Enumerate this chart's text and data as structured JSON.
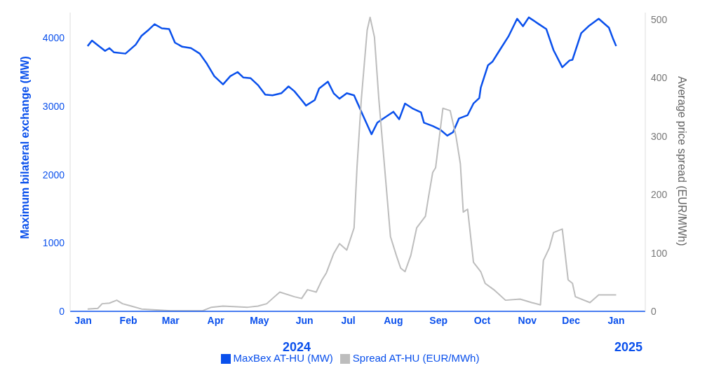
{
  "chart_data": {
    "type": "line",
    "ylabel": "Maximum bilateral exchange (MW)",
    "y2label": "Average price spread (EUR/MWh)",
    "xlim": [
      "2023-12-23",
      "2025-01-21"
    ],
    "xticks": [
      {
        "value": "2024-01-01",
        "label": "Jan"
      },
      {
        "value": "2024-02-01",
        "label": "Feb"
      },
      {
        "value": "2024-03-01",
        "label": "Mar"
      },
      {
        "value": "2024-04-01",
        "label": "Apr"
      },
      {
        "value": "2024-05-01",
        "label": "May"
      },
      {
        "value": "2024-06-01",
        "label": "Jun"
      },
      {
        "value": "2024-07-01",
        "label": "Jul"
      },
      {
        "value": "2024-08-01",
        "label": "Aug"
      },
      {
        "value": "2024-09-01",
        "label": "Sep"
      },
      {
        "value": "2024-10-01",
        "label": "Oct"
      },
      {
        "value": "2024-11-01",
        "label": "Nov"
      },
      {
        "value": "2024-12-01",
        "label": "Dec"
      },
      {
        "value": "2025-01-01",
        "label": "Jan"
      }
    ],
    "ylim": [
      0,
      4370
    ],
    "yticks": [
      0,
      1000,
      2000,
      3000,
      4000
    ],
    "y2lim": [
      0,
      512
    ],
    "y2ticks": [
      0,
      100,
      200,
      300,
      400,
      500
    ],
    "annotations": [
      "2024",
      "2025"
    ],
    "legend": "bottom",
    "grid": false,
    "marker": "none",
    "line_style": "solid",
    "series": [
      {
        "name": "MaxBex AT-HU (MW)",
        "color": "#0a50ec",
        "x": [
          "2024-01-04",
          "2024-01-07",
          "2024-01-10",
          "2024-01-16",
          "2024-01-19",
          "2024-01-22",
          "2024-01-30",
          "2024-02-06",
          "2024-02-10",
          "2024-02-15",
          "2024-02-19",
          "2024-02-24",
          "2024-02-29",
          "2024-03-04",
          "2024-03-09",
          "2024-03-15",
          "2024-03-21",
          "2024-03-26",
          "2024-03-31",
          "2024-04-06",
          "2024-04-11",
          "2024-04-16",
          "2024-04-20",
          "2024-04-25",
          "2024-04-30",
          "2024-05-05",
          "2024-05-10",
          "2024-05-16",
          "2024-05-21",
          "2024-05-25",
          "2024-05-30",
          "2024-06-02",
          "2024-06-08",
          "2024-06-11",
          "2024-06-17",
          "2024-06-21",
          "2024-06-25",
          "2024-06-30",
          "2024-07-05",
          "2024-07-11",
          "2024-07-17",
          "2024-07-21",
          "2024-07-25",
          "2024-08-01",
          "2024-08-05",
          "2024-08-09",
          "2024-08-14",
          "2024-08-20",
          "2024-08-22",
          "2024-08-28",
          "2024-09-02",
          "2024-09-07",
          "2024-09-11",
          "2024-09-15",
          "2024-09-21",
          "2024-09-25",
          "2024-09-29",
          "2024-09-30",
          "2024-10-05",
          "2024-10-08",
          "2024-10-13",
          "2024-10-19",
          "2024-10-25",
          "2024-10-29",
          "2024-11-02",
          "2024-11-09",
          "2024-11-14",
          "2024-11-19",
          "2024-11-25",
          "2024-11-30",
          "2024-12-02",
          "2024-12-08",
          "2024-12-13",
          "2024-12-20",
          "2024-12-27",
          "2024-12-30",
          "2025-01-01"
        ],
        "values": [
          3880,
          3960,
          3910,
          3810,
          3850,
          3790,
          3770,
          3900,
          4030,
          4120,
          4200,
          4140,
          4130,
          3930,
          3870,
          3850,
          3770,
          3620,
          3440,
          3320,
          3440,
          3500,
          3420,
          3410,
          3310,
          3170,
          3160,
          3190,
          3290,
          3220,
          3090,
          3010,
          3090,
          3260,
          3360,
          3190,
          3110,
          3190,
          3160,
          2870,
          2590,
          2760,
          2820,
          2920,
          2810,
          3040,
          2970,
          2910,
          2760,
          2710,
          2660,
          2570,
          2620,
          2820,
          2870,
          3040,
          3120,
          3270,
          3600,
          3650,
          3820,
          4020,
          4280,
          4170,
          4300,
          4200,
          4130,
          3820,
          3570,
          3670,
          3680,
          4070,
          4170,
          4280,
          4150,
          3980,
          3880
        ]
      },
      {
        "name": "Spread AT-HU (EUR/MWh)",
        "color": "#bdbdbd",
        "axis": "y2",
        "x": [
          "2024-01-04",
          "2024-01-11",
          "2024-01-14",
          "2024-01-19",
          "2024-01-24",
          "2024-01-28",
          "2024-02-03",
          "2024-02-10",
          "2024-03-01",
          "2024-03-23",
          "2024-03-29",
          "2024-04-06",
          "2024-04-23",
          "2024-04-30",
          "2024-05-06",
          "2024-05-10",
          "2024-05-15",
          "2024-05-25",
          "2024-05-30",
          "2024-06-03",
          "2024-06-09",
          "2024-06-13",
          "2024-06-16",
          "2024-06-21",
          "2024-06-25",
          "2024-06-30",
          "2024-07-05",
          "2024-07-07",
          "2024-07-10",
          "2024-07-14",
          "2024-07-16",
          "2024-07-19",
          "2024-07-22",
          "2024-07-26",
          "2024-07-30",
          "2024-08-03",
          "2024-08-06",
          "2024-08-09",
          "2024-08-13",
          "2024-08-17",
          "2024-08-23",
          "2024-08-25",
          "2024-08-28",
          "2024-08-30",
          "2024-09-04",
          "2024-09-09",
          "2024-09-13",
          "2024-09-16",
          "2024-09-18",
          "2024-09-21",
          "2024-09-25",
          "2024-09-30",
          "2024-10-03",
          "2024-10-09",
          "2024-10-17",
          "2024-10-27",
          "2024-11-04",
          "2024-11-10",
          "2024-11-12",
          "2024-11-16",
          "2024-11-19",
          "2024-11-25",
          "2024-11-29",
          "2024-12-02",
          "2024-12-04",
          "2024-12-14",
          "2024-12-20",
          "2025-01-01"
        ],
        "values": [
          4,
          5,
          13,
          14,
          19,
          13,
          9,
          4,
          1,
          1,
          7,
          9,
          7,
          9,
          13,
          22,
          33,
          25,
          22,
          37,
          33,
          54,
          66,
          99,
          116,
          105,
          143,
          246,
          364,
          482,
          504,
          470,
          364,
          246,
          128,
          96,
          74,
          68,
          96,
          143,
          163,
          194,
          238,
          246,
          348,
          344,
          300,
          253,
          170,
          175,
          84,
          68,
          48,
          37,
          19,
          21,
          15,
          11,
          87,
          108,
          135,
          141,
          54,
          48,
          25,
          15,
          28,
          28
        ]
      }
    ]
  }
}
